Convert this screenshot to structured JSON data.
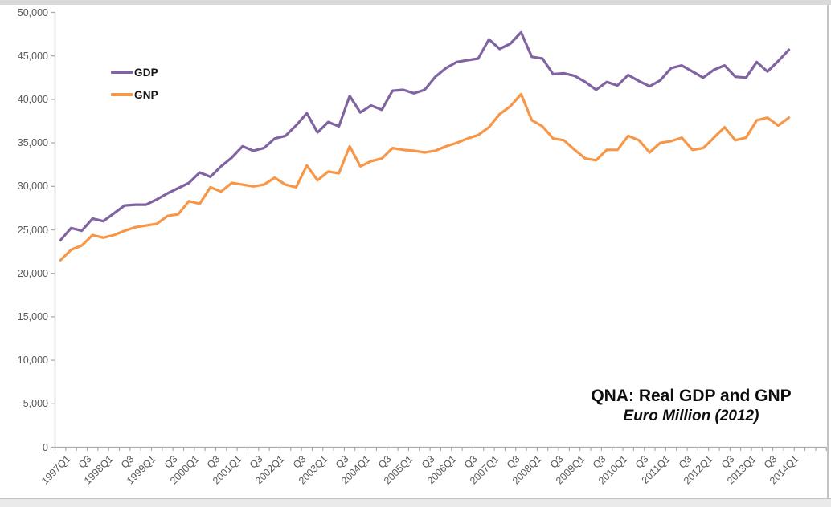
{
  "window": {
    "frame_color": "#d9d9d9"
  },
  "axes": {
    "line_color": "#ababab",
    "label_color": "#595959"
  },
  "chart_data": {
    "type": "line",
    "title": "QNA: Real GDP and GNP",
    "subtitle": "Euro Million (2012)",
    "grid": false,
    "legend_position": "upper-left-inside",
    "ylim": [
      0,
      50000
    ],
    "y_ticks": [
      0,
      5000,
      10000,
      15000,
      20000,
      25000,
      30000,
      35000,
      40000,
      45000,
      50000
    ],
    "y_tick_labels": [
      "0",
      "5,000",
      "10,000",
      "15,000",
      "20,000",
      "25,000",
      "30,000",
      "35,000",
      "40,000",
      "45,000",
      "50,000"
    ],
    "x_tick_labels": [
      "1997Q1",
      "Q3",
      "1998Q1",
      "Q3",
      "1999Q1",
      "Q3",
      "2000Q1",
      "Q3",
      "2001Q1",
      "Q3",
      "2002Q1",
      "Q3",
      "2003Q1",
      "Q3",
      "2004Q1",
      "Q3",
      "2005Q1",
      "Q3",
      "2006Q1",
      "Q3",
      "2007Q1",
      "Q3",
      "2008Q1",
      "Q3",
      "2009Q1",
      "Q3",
      "2010Q1",
      "Q3",
      "2011Q1",
      "Q3",
      "2012Q1",
      "Q3",
      "2013Q1",
      "Q3",
      "2014Q1"
    ],
    "categories": [
      "1997Q1",
      "1997Q2",
      "1997Q3",
      "1997Q4",
      "1998Q1",
      "1998Q2",
      "1998Q3",
      "1998Q4",
      "1999Q1",
      "1999Q2",
      "1999Q3",
      "1999Q4",
      "2000Q1",
      "2000Q2",
      "2000Q3",
      "2000Q4",
      "2001Q1",
      "2001Q2",
      "2001Q3",
      "2001Q4",
      "2002Q1",
      "2002Q2",
      "2002Q3",
      "2002Q4",
      "2003Q1",
      "2003Q2",
      "2003Q3",
      "2003Q4",
      "2004Q1",
      "2004Q2",
      "2004Q3",
      "2004Q4",
      "2005Q1",
      "2005Q2",
      "2005Q3",
      "2005Q4",
      "2006Q1",
      "2006Q2",
      "2006Q3",
      "2006Q4",
      "2007Q1",
      "2007Q2",
      "2007Q3",
      "2007Q4",
      "2008Q1",
      "2008Q2",
      "2008Q3",
      "2008Q4",
      "2009Q1",
      "2009Q2",
      "2009Q3",
      "2009Q4",
      "2010Q1",
      "2010Q2",
      "2010Q3",
      "2010Q4",
      "2011Q1",
      "2011Q2",
      "2011Q3",
      "2011Q4",
      "2012Q1",
      "2012Q2",
      "2012Q3",
      "2012Q4",
      "2013Q1",
      "2013Q2",
      "2013Q3",
      "2013Q4",
      "2014Q1"
    ],
    "series": [
      {
        "name": "GDP",
        "color": "#8064A2",
        "values": [
          23800,
          25200,
          24900,
          26300,
          26000,
          26900,
          27800,
          27900,
          27900,
          28500,
          29200,
          29800,
          30400,
          31600,
          31100,
          32300,
          33300,
          34600,
          34100,
          34400,
          35500,
          35800,
          37000,
          38400,
          36200,
          37400,
          36900,
          40400,
          38500,
          39300,
          38800,
          41000,
          41100,
          40700,
          41100,
          42600,
          43600,
          44300,
          44500,
          44700,
          46900,
          45800,
          46400,
          47700,
          44900,
          44700,
          42900,
          43000,
          42700,
          42000,
          41100,
          42000,
          41600,
          42800,
          42100,
          41500,
          42200,
          43600,
          43900,
          43200,
          42500,
          43400,
          43900,
          42600,
          42500,
          44300,
          43200,
          44400,
          45700
        ]
      },
      {
        "name": "GNP",
        "color": "#F79646",
        "values": [
          21500,
          22700,
          23200,
          24400,
          24100,
          24400,
          24900,
          25300,
          25500,
          25700,
          26600,
          26800,
          28300,
          28000,
          29900,
          29400,
          30400,
          30200,
          30000,
          30200,
          31000,
          30200,
          29900,
          32400,
          30700,
          31700,
          31500,
          34600,
          32300,
          32900,
          33200,
          34400,
          34200,
          34100,
          33900,
          34100,
          34600,
          35000,
          35500,
          35900,
          36800,
          38300,
          39200,
          40600,
          37600,
          36900,
          35500,
          35300,
          34200,
          33200,
          33000,
          34200,
          34200,
          35800,
          35300,
          33900,
          35000,
          35200,
          35600,
          34200,
          34400,
          35600,
          36800,
          35300,
          35600,
          37600,
          37900,
          37000,
          37900
        ]
      }
    ]
  }
}
